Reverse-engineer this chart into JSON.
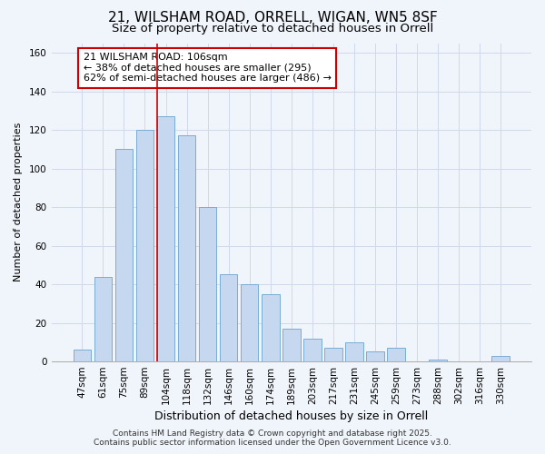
{
  "title": "21, WILSHAM ROAD, ORRELL, WIGAN, WN5 8SF",
  "subtitle": "Size of property relative to detached houses in Orrell",
  "xlabel": "Distribution of detached houses by size in Orrell",
  "ylabel": "Number of detached properties",
  "categories": [
    "47sqm",
    "61sqm",
    "75sqm",
    "89sqm",
    "104sqm",
    "118sqm",
    "132sqm",
    "146sqm",
    "160sqm",
    "174sqm",
    "189sqm",
    "203sqm",
    "217sqm",
    "231sqm",
    "245sqm",
    "259sqm",
    "273sqm",
    "288sqm",
    "302sqm",
    "316sqm",
    "330sqm"
  ],
  "values": [
    6,
    44,
    110,
    120,
    127,
    117,
    80,
    45,
    40,
    35,
    17,
    12,
    7,
    10,
    5,
    7,
    0,
    1,
    0,
    0,
    3
  ],
  "bar_color": "#c5d8f0",
  "bar_edge_color": "#7aadd4",
  "vline_x_index": 4,
  "vline_color": "#cc0000",
  "annotation_text": "21 WILSHAM ROAD: 106sqm\n← 38% of detached houses are smaller (295)\n62% of semi-detached houses are larger (486) →",
  "annotation_box_color": "#ffffff",
  "annotation_box_edge_color": "#cc0000",
  "ylim": [
    0,
    165
  ],
  "yticks": [
    0,
    20,
    40,
    60,
    80,
    100,
    120,
    140,
    160
  ],
  "grid_color": "#d0d8ea",
  "background_color": "#f0f4fb",
  "footer_text": "Contains HM Land Registry data © Crown copyright and database right 2025.\nContains public sector information licensed under the Open Government Licence v3.0.",
  "title_fontsize": 11,
  "subtitle_fontsize": 9.5,
  "xlabel_fontsize": 9,
  "ylabel_fontsize": 8,
  "tick_fontsize": 7.5,
  "annotation_fontsize": 8,
  "footer_fontsize": 6.5
}
